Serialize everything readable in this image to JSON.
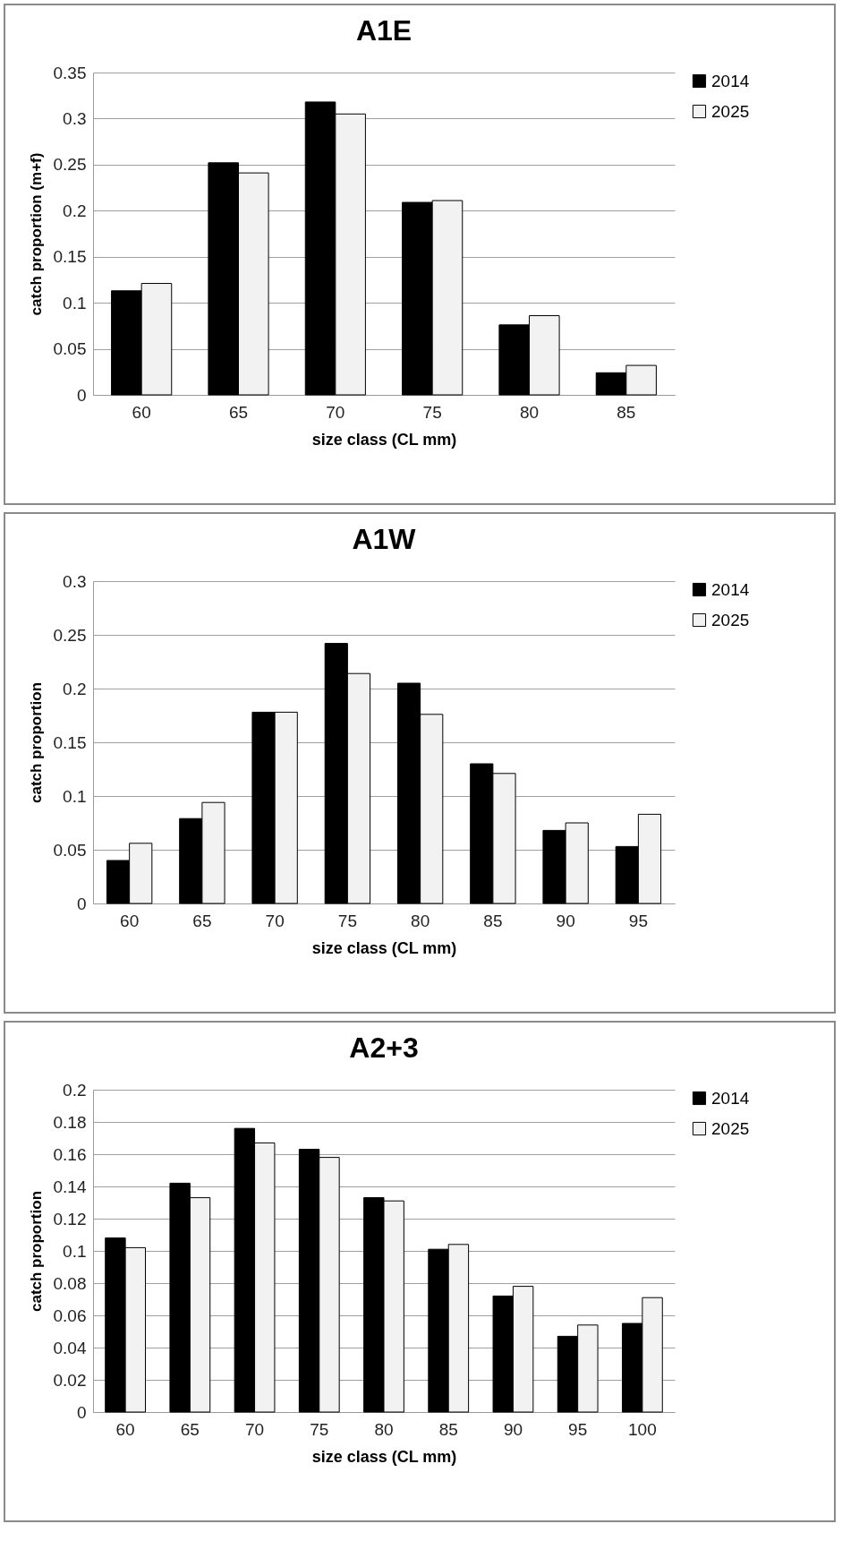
{
  "chart_data": [
    {
      "type": "bar",
      "title": "A1E",
      "xlabel": "size class (CL mm)",
      "ylabel": "catch proportion  (m+f)",
      "categories": [
        "60",
        "65",
        "70",
        "75",
        "80",
        "85"
      ],
      "series": [
        {
          "name": "2014",
          "color": "#000000",
          "values": [
            0.113,
            0.252,
            0.318,
            0.209,
            0.076,
            0.024
          ]
        },
        {
          "name": "2025",
          "color": "#f2f2f2",
          "values": [
            0.121,
            0.241,
            0.305,
            0.211,
            0.086,
            0.032
          ]
        }
      ],
      "ylim": [
        0,
        0.35
      ],
      "yticks": [
        0,
        0.05,
        0.1,
        0.15,
        0.2,
        0.25,
        0.3,
        0.35
      ],
      "grid": "y",
      "legend": "right"
    },
    {
      "type": "bar",
      "title": "A1W",
      "xlabel": "size class (CL mm)",
      "ylabel": "catch proportion",
      "categories": [
        "60",
        "65",
        "70",
        "75",
        "80",
        "85",
        "90",
        "95"
      ],
      "series": [
        {
          "name": "2014",
          "color": "#000000",
          "values": [
            0.04,
            0.079,
            0.178,
            0.242,
            0.205,
            0.13,
            0.068,
            0.053
          ]
        },
        {
          "name": "2025",
          "color": "#f2f2f2",
          "values": [
            0.056,
            0.094,
            0.178,
            0.214,
            0.176,
            0.121,
            0.075,
            0.083
          ]
        }
      ],
      "ylim": [
        0,
        0.3
      ],
      "yticks": [
        0,
        0.05,
        0.1,
        0.15,
        0.2,
        0.25,
        0.3
      ],
      "grid": "y",
      "legend": "right"
    },
    {
      "type": "bar",
      "title": "A2+3",
      "xlabel": "size class (CL mm)",
      "ylabel": "catch proportion",
      "categories": [
        "60",
        "65",
        "70",
        "75",
        "80",
        "85",
        "90",
        "95",
        "100"
      ],
      "series": [
        {
          "name": "2014",
          "color": "#000000",
          "values": [
            0.108,
            0.142,
            0.176,
            0.163,
            0.133,
            0.101,
            0.072,
            0.047,
            0.055
          ]
        },
        {
          "name": "2025",
          "color": "#f2f2f2",
          "values": [
            0.102,
            0.133,
            0.167,
            0.158,
            0.131,
            0.104,
            0.078,
            0.054,
            0.071
          ]
        }
      ],
      "ylim": [
        0,
        0.2
      ],
      "yticks": [
        0,
        0.02,
        0.04,
        0.06,
        0.08,
        0.1,
        0.12,
        0.14,
        0.16,
        0.18,
        0.2
      ],
      "grid": "y",
      "legend": "right"
    }
  ]
}
